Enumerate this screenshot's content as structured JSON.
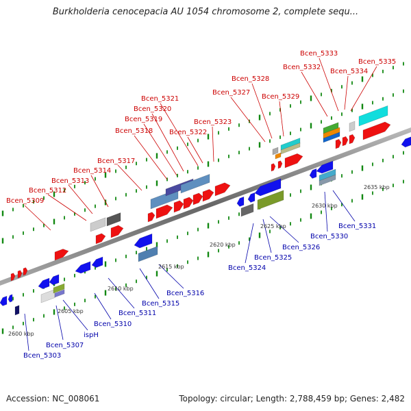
{
  "title": "Burkholderia cenocepacia AU 1054 chromosome 2, complete sequ...",
  "footer": {
    "accession": "Accession: NC_008061",
    "topology": "Topology: circular; Length: 2,788,459 bp; Genes: 2,482"
  },
  "colors": {
    "forward_label": "#cc0000",
    "reverse_label": "#0000aa",
    "forward_gene": "#ee1111",
    "reverse_gene": "#1111ee",
    "tick": "#118811",
    "axis": "#888888"
  },
  "scale_labels": [
    "2600 kbp",
    "2605 kbp",
    "2610 kbp",
    "2615 kbp",
    "2620 kbp",
    "2625 kbp",
    "2630 kbp",
    "2635 kbp"
  ],
  "forward_genes": [
    "Bcen_5309",
    "Bcen_5312",
    "Bcen_5313",
    "Bcen_5314",
    "Bcen_5317",
    "Bcen_5318",
    "Bcen_5319",
    "Bcen_5320",
    "Bcen_5321",
    "Bcen_5322",
    "Bcen_5323",
    "Bcen_5327",
    "Bcen_5328",
    "Bcen_5329",
    "Bcen_5332",
    "Bcen_5333",
    "Bcen_5334",
    "Bcen_5335"
  ],
  "reverse_genes": [
    "Bcen_5303",
    "Bcen_5307",
    "ispH",
    "Bcen_5310",
    "Bcen_5311",
    "Bcen_5315",
    "Bcen_5316",
    "Bcen_5324",
    "Bcen_5325",
    "Bcen_5326",
    "Bcen_5330",
    "Bcen_5331"
  ]
}
